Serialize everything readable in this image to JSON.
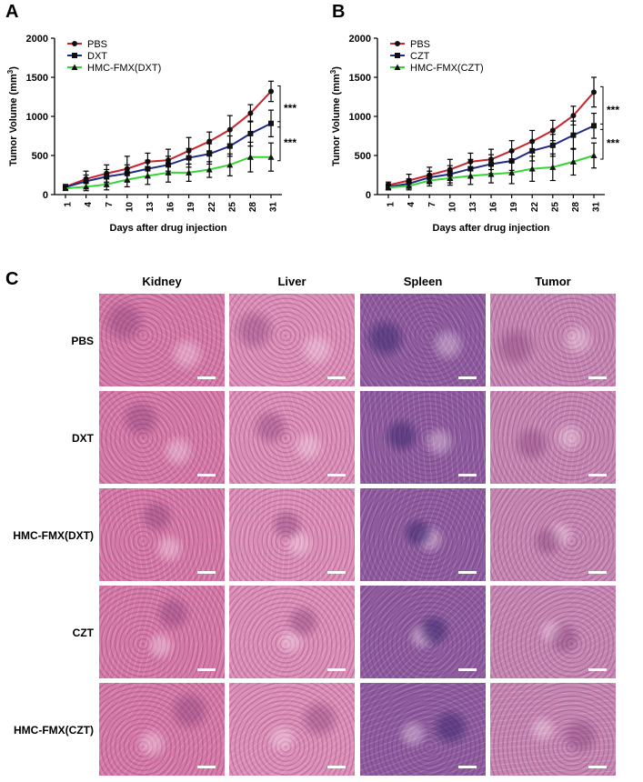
{
  "panels": {
    "a": "A",
    "b": "B",
    "c": "C"
  },
  "chart_data": [
    {
      "type": "line",
      "panel": "A",
      "title": "",
      "xlabel": "Days after drug injection",
      "ylabel_main": "Tumor Volume (mm",
      "ylabel_sup": "3",
      "ylabel_close": ")",
      "x": [
        "1",
        "4",
        "7",
        "10",
        "13",
        "16",
        "19",
        "22",
        "25",
        "28",
        "31"
      ],
      "ylim": [
        0,
        2000
      ],
      "yticks": [
        "0",
        "500",
        "1000",
        "1500",
        "2000"
      ],
      "series": [
        {
          "name": "PBS",
          "color": "#cc2229",
          "marker": "circle",
          "values": [
            100,
            200,
            270,
            330,
            420,
            440,
            560,
            680,
            830,
            1040,
            1320
          ],
          "errors": [
            30,
            100,
            110,
            160,
            110,
            140,
            170,
            120,
            180,
            110,
            130
          ]
        },
        {
          "name": "DXT",
          "color": "#1f2a8a",
          "marker": "square",
          "values": [
            95,
            170,
            230,
            270,
            330,
            380,
            470,
            520,
            620,
            780,
            910
          ],
          "errors": [
            30,
            80,
            90,
            110,
            110,
            110,
            120,
            130,
            130,
            160,
            170
          ]
        },
        {
          "name": "HMC-FMX(DXT)",
          "color": "#35d435",
          "marker": "triangle",
          "values": [
            80,
            100,
            130,
            190,
            240,
            280,
            280,
            320,
            380,
            480,
            480
          ],
          "errors": [
            20,
            50,
            70,
            90,
            110,
            120,
            110,
            100,
            140,
            190,
            180
          ]
        }
      ],
      "significance": [
        "***",
        "***"
      ]
    },
    {
      "type": "line",
      "panel": "B",
      "title": "",
      "xlabel": "Days after drug injection",
      "ylabel_main": "Tumor Volume (mm",
      "ylabel_sup": "3",
      "ylabel_close": ")",
      "x": [
        "1",
        "4",
        "7",
        "10",
        "13",
        "16",
        "19",
        "22",
        "25",
        "28",
        "31"
      ],
      "ylim": [
        0,
        2000
      ],
      "yticks": [
        "0",
        "500",
        "1000",
        "1500",
        "2000"
      ],
      "series": [
        {
          "name": "PBS",
          "color": "#cc2229",
          "marker": "circle",
          "values": [
            120,
            180,
            250,
            320,
            420,
            450,
            560,
            680,
            820,
            1010,
            1310
          ],
          "errors": [
            40,
            80,
            100,
            130,
            110,
            130,
            130,
            140,
            130,
            120,
            190
          ]
        },
        {
          "name": "CZT",
          "color": "#1f2a8a",
          "marker": "square",
          "values": [
            100,
            140,
            220,
            260,
            330,
            390,
            430,
            560,
            630,
            760,
            880
          ],
          "errors": [
            40,
            60,
            80,
            110,
            120,
            120,
            120,
            130,
            140,
            180,
            160
          ]
        },
        {
          "name": "HMC-FMX(CZT)",
          "color": "#35d435",
          "marker": "triangle",
          "values": [
            90,
            110,
            180,
            210,
            240,
            260,
            280,
            330,
            350,
            420,
            500
          ],
          "errors": [
            30,
            50,
            70,
            90,
            110,
            110,
            140,
            160,
            170,
            170,
            160
          ]
        }
      ],
      "significance": [
        "***",
        "***"
      ]
    }
  ],
  "histology": {
    "columns": [
      "Kidney",
      "Liver",
      "Spleen",
      "Tumor"
    ],
    "rows": [
      "PBS",
      "DXT",
      "HMC-FMX(DXT)",
      "CZT",
      "HMC-FMX(CZT)"
    ],
    "tissue_colors": {
      "Kidney": "#d77aa8",
      "Liver": "#de8fb8",
      "Spleen": "#8e5c9f",
      "Tumor": "#c887b3"
    }
  }
}
